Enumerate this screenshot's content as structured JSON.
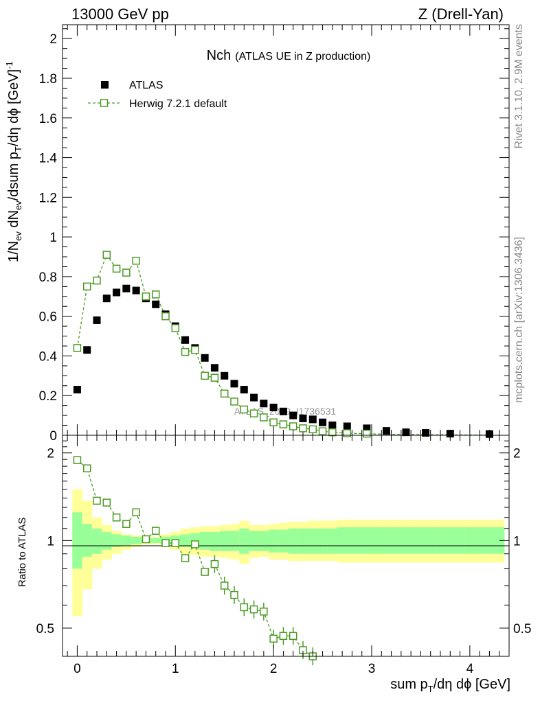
{
  "header": {
    "left": "13000 GeV pp",
    "right": "Z (Drell-Yan)"
  },
  "side_labels": {
    "rivet": "Rivet 3.1.10,  2.9M events",
    "mcplots": "mcplots.cern.ch [arXiv:1306.3436]"
  },
  "chart_data": {
    "type": "scatter",
    "title": "Nch",
    "subtitle": "(ATLAS UE in Z production)",
    "watermark": "ATLAS_2019_I1736531",
    "xlabel": "sum p_T/dη dϕ [GeV]",
    "ylabel": "1/N_ev dN_ev/dsum p_T/dη dϕ [GeV]^-1",
    "ratio_ylabel": "Ratio to ATLAS",
    "xlim": [
      -0.15,
      4.4
    ],
    "ylim": [
      0,
      2.07
    ],
    "ratio_ylim": [
      0.4,
      2.3
    ],
    "x_ticks": [
      "0",
      "1",
      "2",
      "3",
      "4"
    ],
    "y_ticks": [
      "0",
      "0.2",
      "0.4",
      "0.6",
      "0.8",
      "1",
      "1.2",
      "1.4",
      "1.6",
      "1.8",
      "2"
    ],
    "ratio_ticks": [
      "0.5",
      "1",
      "2"
    ],
    "legend": [
      "ATLAS",
      "Herwig 7.2.1 default"
    ],
    "series": [
      {
        "name": "ATLAS",
        "color": "#000000",
        "x": [
          0.0,
          0.1,
          0.2,
          0.3,
          0.4,
          0.5,
          0.6,
          0.7,
          0.8,
          0.9,
          1.0,
          1.1,
          1.2,
          1.3,
          1.4,
          1.5,
          1.6,
          1.7,
          1.8,
          1.9,
          2.0,
          2.1,
          2.2,
          2.3,
          2.4,
          2.5,
          2.6,
          2.75,
          2.95,
          3.15,
          3.35,
          3.55,
          3.8,
          4.2
        ],
        "values": [
          0.23,
          0.43,
          0.58,
          0.69,
          0.72,
          0.74,
          0.73,
          0.69,
          0.66,
          0.61,
          0.55,
          0.48,
          0.44,
          0.39,
          0.34,
          0.3,
          0.26,
          0.23,
          0.19,
          0.16,
          0.14,
          0.12,
          0.1,
          0.085,
          0.08,
          0.065,
          0.05,
          0.045,
          0.035,
          0.022,
          0.015,
          0.012,
          0.008,
          0.006
        ]
      },
      {
        "name": "Herwig 7.2.1 default",
        "color": "#4b9a23",
        "x": [
          0.0,
          0.1,
          0.2,
          0.3,
          0.4,
          0.5,
          0.6,
          0.7,
          0.8,
          0.9,
          1.0,
          1.1,
          1.2,
          1.3,
          1.4,
          1.5,
          1.6,
          1.7,
          1.8,
          1.9,
          2.0,
          2.1,
          2.2,
          2.3,
          2.4,
          2.5,
          2.6,
          2.75,
          2.95,
          3.15,
          3.35,
          3.55,
          3.8,
          4.2
        ],
        "values": [
          0.44,
          0.75,
          0.78,
          0.91,
          0.84,
          0.82,
          0.88,
          0.7,
          0.71,
          0.6,
          0.54,
          0.42,
          0.43,
          0.3,
          0.29,
          0.21,
          0.17,
          0.13,
          0.11,
          0.09,
          0.065,
          0.055,
          0.045,
          0.035,
          0.03,
          0.02,
          0.015,
          0.01,
          0.008,
          0.005,
          0.004,
          0.003,
          0.002,
          0.001
        ],
        "ratio": [
          1.89,
          1.77,
          1.37,
          1.35,
          1.2,
          1.14,
          1.25,
          1.01,
          1.08,
          0.98,
          0.98,
          0.87,
          0.97,
          0.78,
          0.83,
          0.7,
          0.65,
          0.59,
          0.58,
          0.57,
          0.46,
          0.47,
          0.47,
          0.42,
          0.4
        ]
      }
    ],
    "ratio_band": {
      "x_edges": [
        -0.05,
        0.05,
        0.15,
        0.25,
        0.35,
        0.45,
        0.55,
        0.65,
        0.75,
        0.85,
        0.95,
        1.05,
        1.15,
        1.25,
        1.35,
        1.45,
        1.55,
        1.65,
        1.75,
        1.85,
        1.95,
        2.05,
        2.15,
        2.25,
        2.35,
        2.45,
        2.55,
        2.65,
        2.85,
        3.05,
        3.25,
        3.45,
        3.65,
        3.95,
        4.35
      ],
      "inner_lo": [
        0.8,
        0.88,
        0.9,
        0.93,
        0.95,
        0.96,
        0.97,
        0.98,
        0.98,
        0.97,
        0.96,
        0.95,
        0.94,
        0.93,
        0.92,
        0.92,
        0.92,
        0.9,
        0.92,
        0.92,
        0.91,
        0.91,
        0.9,
        0.9,
        0.9,
        0.9,
        0.9,
        0.9,
        0.9,
        0.9,
        0.9,
        0.9,
        0.9,
        0.9
      ],
      "inner_hi": [
        1.25,
        1.14,
        1.1,
        1.07,
        1.05,
        1.04,
        1.03,
        1.02,
        1.02,
        1.03,
        1.04,
        1.05,
        1.06,
        1.07,
        1.07,
        1.08,
        1.08,
        1.1,
        1.08,
        1.08,
        1.09,
        1.09,
        1.1,
        1.1,
        1.1,
        1.1,
        1.1,
        1.11,
        1.11,
        1.11,
        1.11,
        1.11,
        1.11,
        1.11
      ],
      "outer_lo": [
        0.55,
        0.68,
        0.8,
        0.86,
        0.9,
        0.93,
        0.95,
        0.97,
        0.97,
        0.95,
        0.93,
        0.9,
        0.89,
        0.88,
        0.88,
        0.87,
        0.86,
        0.83,
        0.87,
        0.88,
        0.86,
        0.86,
        0.85,
        0.85,
        0.85,
        0.85,
        0.85,
        0.84,
        0.84,
        0.84,
        0.84,
        0.84,
        0.84,
        0.84
      ],
      "outer_hi": [
        1.5,
        1.37,
        1.2,
        1.13,
        1.08,
        1.05,
        1.04,
        1.03,
        1.03,
        1.05,
        1.07,
        1.1,
        1.11,
        1.12,
        1.12,
        1.13,
        1.14,
        1.17,
        1.13,
        1.13,
        1.14,
        1.15,
        1.16,
        1.16,
        1.17,
        1.17,
        1.17,
        1.18,
        1.18,
        1.18,
        1.18,
        1.18,
        1.18,
        1.18
      ]
    }
  }
}
